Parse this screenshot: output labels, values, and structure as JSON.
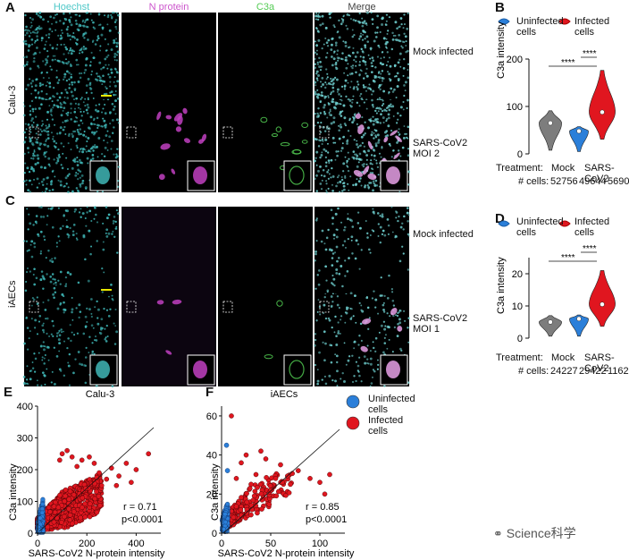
{
  "figure": {
    "panels": {
      "a": "A",
      "b": "B",
      "c": "C",
      "d": "D",
      "e": "E",
      "f": "F"
    },
    "channels": [
      "Hoechst",
      "N protein",
      "C3a",
      "Merge"
    ],
    "channel_colors": [
      "#4fc8c8",
      "#cc55cc",
      "#55cc55",
      "#ffffff"
    ],
    "row_a_label": "Calu-3",
    "row_c_label": "iAECs",
    "condition_labels": {
      "mock": "Mock infected",
      "sars_a": "SARS-CoV2 MOI 2",
      "sars_c": "SARS-CoV2 MOI 1"
    },
    "legend": {
      "uninfected": "Uninfected cells",
      "infected": "Infected cells",
      "uninfected_color": "#2b7fd9",
      "infected_color": "#e0161f"
    },
    "stat_rows": {
      "treatment_label": "Treatment:",
      "cells_label": "# cells:",
      "mock": "Mock",
      "sars": "SARS-CoV2"
    },
    "significance": "****",
    "watermark": "Science科学"
  },
  "chart_data": [
    {
      "panel": "B",
      "type": "violin",
      "title": "",
      "ylabel": "C3a intensity",
      "ylim": [
        0,
        200
      ],
      "yticks": [
        0,
        100,
        200
      ],
      "groups": [
        "Mock",
        "SARS-CoV2 uninfected",
        "SARS-CoV2 infected"
      ],
      "medians": [
        65,
        48,
        88
      ],
      "n_cells": [
        "52756",
        "49644",
        "5690"
      ],
      "comparisons": [
        "Mock vs infected ****",
        "Uninfected vs infected ****"
      ]
    },
    {
      "panel": "D",
      "type": "violin",
      "title": "",
      "ylabel": "C3a intensity",
      "ylim": [
        0,
        25
      ],
      "yticks": [
        0,
        10,
        20
      ],
      "groups": [
        "Mock",
        "SARS-CoV2 uninfected",
        "SARS-CoV2 infected"
      ],
      "medians": [
        5,
        6,
        10.5
      ],
      "n_cells": [
        "24227",
        "29422",
        "1162"
      ],
      "comparisons": [
        "Mock vs infected ****",
        "Uninfected vs infected ****"
      ]
    },
    {
      "panel": "E",
      "type": "scatter",
      "title": "Calu-3",
      "xlabel": "SARS-CoV2 N-protein intensity",
      "ylabel": "C3a intensity",
      "xlim": [
        0,
        500
      ],
      "ylim": [
        0,
        400
      ],
      "xticks": [
        0,
        200,
        400
      ],
      "yticks": [
        0,
        100,
        200,
        300,
        400
      ],
      "stats": [
        "r = 0.71",
        "p<0.0001"
      ],
      "outliers": [
        [
          450,
          250
        ],
        [
          400,
          200
        ],
        [
          360,
          220
        ],
        [
          300,
          205
        ],
        [
          330,
          180
        ],
        [
          280,
          170
        ],
        [
          250,
          190
        ],
        [
          230,
          220
        ],
        [
          210,
          240
        ],
        [
          180,
          230
        ],
        [
          160,
          210
        ],
        [
          140,
          240
        ],
        [
          120,
          260
        ],
        [
          100,
          250
        ],
        [
          90,
          230
        ],
        [
          380,
          160
        ],
        [
          320,
          150
        ],
        [
          260,
          150
        ]
      ]
    },
    {
      "panel": "F",
      "type": "scatter",
      "title": "iAECs",
      "xlabel": "SARS-CoV2 N-protein intensity",
      "ylabel": "C3a intensity",
      "xlim": [
        0,
        120
      ],
      "ylim": [
        0,
        65
      ],
      "xticks": [
        0,
        50,
        100
      ],
      "yticks": [
        0,
        20,
        40,
        60
      ],
      "stats": [
        "r = 0.85",
        "p<0.0001"
      ],
      "outliers": [
        [
          10,
          60
        ],
        [
          20,
          36
        ],
        [
          25,
          40
        ],
        [
          40,
          42
        ],
        [
          45,
          38
        ],
        [
          60,
          35
        ],
        [
          78,
          32
        ],
        [
          110,
          30
        ],
        [
          105,
          20
        ],
        [
          90,
          28
        ],
        [
          70,
          25
        ],
        [
          55,
          28
        ],
        [
          35,
          30
        ],
        [
          15,
          28
        ],
        [
          30,
          25
        ],
        [
          50,
          22
        ],
        [
          100,
          26
        ]
      ],
      "blue_outliers": [
        [
          5,
          45
        ],
        [
          6,
          32
        ]
      ]
    }
  ]
}
